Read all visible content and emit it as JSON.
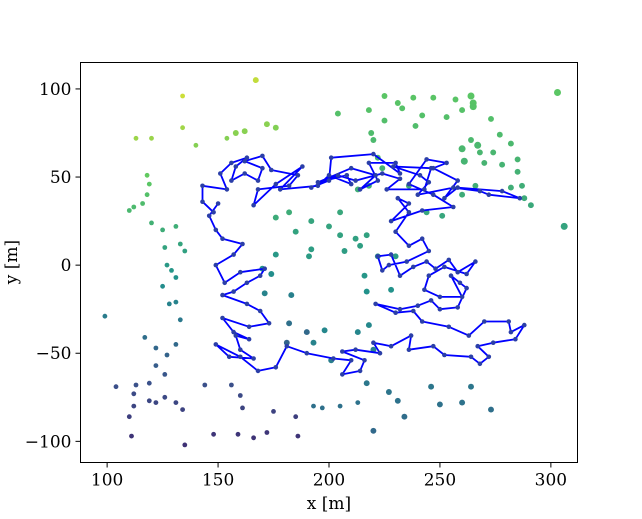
{
  "chart_data": {
    "type": "scatter",
    "title": "",
    "xlabel": "x [m]",
    "ylabel": "y [m]",
    "xlim": [
      88,
      312
    ],
    "ylim": [
      -112,
      115
    ],
    "xticks": [
      100,
      150,
      200,
      250,
      300
    ],
    "yticks": [
      -100,
      -50,
      0,
      50,
      100
    ],
    "xtick_labels": [
      "100",
      "150",
      "200",
      "250",
      "300"
    ],
    "ytick_labels": [
      "−100",
      "−50",
      "0",
      "50",
      "100"
    ],
    "grid": false,
    "legend": "none",
    "colormap": "viridis",
    "colors": {
      "path": "#0000ff",
      "path_nodes": "#2b3fa8",
      "axes": "#000000",
      "background": "#ffffff"
    },
    "scatter_points": [
      [
        113,
        72,
        1,
        4
      ],
      [
        120,
        72,
        1,
        4
      ],
      [
        134,
        96,
        1,
        4
      ],
      [
        134,
        78,
        1,
        4
      ],
      [
        140,
        68,
        1,
        4
      ],
      [
        167,
        105,
        1,
        5
      ],
      [
        172,
        80,
        1,
        5
      ],
      [
        176,
        78,
        1,
        5
      ],
      [
        154,
        72,
        1,
        4
      ],
      [
        158,
        75,
        1,
        5
      ],
      [
        162,
        76,
        1,
        5
      ],
      [
        118,
        51,
        1,
        4
      ],
      [
        119,
        46,
        1,
        4
      ],
      [
        118,
        40,
        1,
        4
      ],
      [
        116,
        35,
        1,
        4
      ],
      [
        112,
        33,
        1,
        4
      ],
      [
        110,
        31,
        1,
        4
      ],
      [
        120,
        24,
        1,
        4
      ],
      [
        125,
        20,
        1,
        4
      ],
      [
        131,
        22,
        1,
        4
      ],
      [
        133,
        12,
        1,
        4
      ],
      [
        135,
        8,
        1,
        4
      ],
      [
        126,
        10,
        1,
        4
      ],
      [
        127,
        0,
        1,
        4
      ],
      [
        129,
        -3,
        1,
        4
      ],
      [
        131,
        -7,
        1,
        4
      ],
      [
        125,
        -12,
        1,
        4
      ],
      [
        128,
        -22,
        1,
        4
      ],
      [
        131,
        -21,
        1,
        4
      ],
      [
        133,
        -31,
        1,
        4
      ],
      [
        99,
        -29,
        1,
        4
      ],
      [
        117,
        -41,
        1,
        4
      ],
      [
        122,
        -47,
        1,
        4
      ],
      [
        127,
        -51,
        1,
        4
      ],
      [
        131,
        -45,
        1,
        4
      ],
      [
        122,
        -57,
        1,
        4
      ],
      [
        126,
        -62,
        1,
        4
      ],
      [
        119,
        -67,
        1,
        4
      ],
      [
        113,
        -68,
        1,
        4
      ],
      [
        104,
        -69,
        1,
        4
      ],
      [
        112,
        -73,
        1,
        4
      ],
      [
        119,
        -77,
        1,
        4
      ],
      [
        122,
        -78,
        1,
        4
      ],
      [
        126,
        -75,
        1,
        4
      ],
      [
        131,
        -78,
        1,
        4
      ],
      [
        134,
        -82,
        1,
        4
      ],
      [
        112,
        -80,
        1,
        4
      ],
      [
        110,
        -86,
        1,
        4
      ],
      [
        111,
        -97,
        1,
        4
      ],
      [
        135,
        -102,
        1,
        4
      ],
      [
        148,
        -96,
        1,
        4
      ],
      [
        159,
        -96,
        1,
        4
      ],
      [
        166,
        -98,
        1,
        4
      ],
      [
        186,
        -97,
        1,
        4
      ],
      [
        172,
        -95,
        1,
        4
      ],
      [
        144,
        -68,
        1,
        4
      ],
      [
        156,
        -68,
        1,
        4
      ],
      [
        160,
        -74,
        1,
        4
      ],
      [
        161,
        -81,
        1,
        4
      ],
      [
        175,
        -83,
        1,
        4
      ],
      [
        185,
        -86,
        1,
        4
      ],
      [
        193,
        -80,
        1,
        4
      ],
      [
        197,
        -81,
        1,
        4
      ],
      [
        205,
        -80,
        1,
        4
      ],
      [
        213,
        -78,
        1,
        4
      ],
      [
        220,
        -94,
        1,
        5
      ],
      [
        231,
        -77,
        1,
        5
      ],
      [
        234,
        -86,
        1,
        5
      ],
      [
        250,
        -79,
        1,
        5
      ],
      [
        264,
        -69,
        1,
        5
      ],
      [
        273,
        -82,
        1,
        5
      ],
      [
        246,
        -69,
        1,
        5
      ],
      [
        260,
        -78,
        1,
        5
      ],
      [
        217,
        -67,
        1,
        5
      ],
      [
        227,
        -72,
        1,
        5
      ],
      [
        204,
        86,
        1,
        5
      ],
      [
        218,
        88,
        1,
        5
      ],
      [
        225,
        96,
        1,
        5
      ],
      [
        231,
        92,
        1,
        5
      ],
      [
        233,
        89,
        1,
        5
      ],
      [
        238,
        95,
        1,
        5
      ],
      [
        247,
        95,
        1,
        5
      ],
      [
        257,
        94,
        1,
        5
      ],
      [
        264,
        96,
        1,
        6
      ],
      [
        265,
        92,
        1,
        6
      ],
      [
        265,
        90,
        1,
        6
      ],
      [
        260,
        88,
        1,
        5
      ],
      [
        273,
        83,
        1,
        5
      ],
      [
        303,
        98,
        1,
        6
      ],
      [
        242,
        85,
        1,
        5
      ],
      [
        225,
        82,
        1,
        5
      ],
      [
        219,
        75,
        1,
        5
      ],
      [
        220,
        71,
        1,
        5
      ],
      [
        239,
        79,
        1,
        5
      ],
      [
        253,
        84,
        1,
        5
      ],
      [
        264,
        71,
        1,
        5
      ],
      [
        277,
        74,
        1,
        5
      ],
      [
        267,
        68,
        1,
        6
      ],
      [
        282,
        69,
        1,
        5
      ],
      [
        285,
        60,
        1,
        5
      ],
      [
        260,
        66,
        1,
        6
      ],
      [
        268,
        64,
        1,
        5
      ],
      [
        274,
        64,
        1,
        5
      ],
      [
        261,
        59,
        1,
        6
      ],
      [
        270,
        58,
        1,
        5
      ],
      [
        278,
        57,
        1,
        5
      ],
      [
        285,
        53,
        1,
        5
      ],
      [
        287,
        45,
        1,
        5
      ],
      [
        288,
        38,
        1,
        5
      ],
      [
        282,
        44,
        1,
        5
      ],
      [
        291,
        34,
        1,
        5
      ],
      [
        306,
        22,
        1,
        6
      ],
      [
        266,
        45,
        1,
        5
      ],
      [
        260,
        40,
        1,
        5
      ],
      [
        251,
        28,
        1,
        5
      ],
      [
        244,
        30,
        1,
        5
      ],
      [
        236,
        45,
        1,
        5
      ],
      [
        224,
        55,
        1,
        5
      ],
      [
        222,
        61,
        1,
        5
      ],
      [
        218,
        45,
        1,
        5
      ],
      [
        213,
        43,
        1,
        5
      ],
      [
        205,
        30,
        1,
        5
      ],
      [
        200,
        22,
        1,
        5
      ],
      [
        205,
        17,
        1,
        5
      ],
      [
        212,
        15,
        1,
        5
      ],
      [
        207,
        8,
        1,
        5
      ],
      [
        214,
        11,
        1,
        5
      ],
      [
        217,
        17,
        1,
        5
      ],
      [
        222,
        5,
        1,
        5
      ],
      [
        216,
        -6,
        1,
        5
      ],
      [
        217,
        -15,
        1,
        5
      ],
      [
        228,
        -14,
        1,
        5
      ],
      [
        230,
        5,
        1,
        5
      ],
      [
        192,
        25,
        1,
        5
      ],
      [
        182,
        30,
        1,
        5
      ],
      [
        176,
        27,
        1,
        5
      ],
      [
        185,
        19,
        1,
        5
      ],
      [
        192,
        9,
        1,
        5
      ],
      [
        191,
        5,
        1,
        5
      ],
      [
        176,
        6,
        1,
        5
      ],
      [
        170,
        -2,
        1,
        5
      ],
      [
        174,
        -5,
        1,
        5
      ],
      [
        171,
        -16,
        1,
        5
      ],
      [
        183,
        -17,
        1,
        5
      ],
      [
        182,
        -33,
        1,
        5
      ],
      [
        181,
        -44,
        1,
        5
      ],
      [
        190,
        -38,
        1,
        5
      ],
      [
        193,
        -44,
        1,
        5
      ],
      [
        198,
        -37,
        1,
        5
      ],
      [
        201,
        -54,
        1,
        5
      ],
      [
        213,
        -38,
        1,
        5
      ],
      [
        218,
        -34,
        1,
        5
      ],
      [
        220,
        -48,
        1,
        5
      ]
    ],
    "path_points": [
      [
        148,
        30
      ],
      [
        143,
        36
      ],
      [
        143,
        45
      ],
      [
        154,
        43
      ],
      [
        151,
        52
      ],
      [
        156,
        58
      ],
      [
        163,
        61
      ],
      [
        158,
        56
      ],
      [
        156,
        48
      ],
      [
        162,
        52
      ],
      [
        168,
        48
      ],
      [
        170,
        55
      ],
      [
        162,
        59
      ],
      [
        170,
        62
      ],
      [
        174,
        54
      ],
      [
        186,
        51
      ],
      [
        182,
        45
      ],
      [
        168,
        43
      ],
      [
        166,
        34
      ],
      [
        176,
        46
      ],
      [
        188,
        56
      ],
      [
        178,
        43
      ],
      [
        195,
        45
      ],
      [
        200,
        51
      ],
      [
        210,
        46
      ],
      [
        208,
        51
      ],
      [
        195,
        47
      ],
      [
        210,
        55
      ],
      [
        221,
        51
      ],
      [
        214,
        43
      ],
      [
        222,
        48
      ],
      [
        218,
        58
      ],
      [
        230,
        58
      ],
      [
        232,
        52
      ],
      [
        220,
        63
      ],
      [
        201,
        61
      ],
      [
        200,
        48
      ],
      [
        192,
        44
      ],
      [
        204,
        51
      ],
      [
        212,
        48
      ],
      [
        224,
        52
      ],
      [
        232,
        49
      ],
      [
        226,
        43
      ],
      [
        243,
        43
      ],
      [
        246,
        55
      ],
      [
        229,
        56
      ],
      [
        241,
        51
      ],
      [
        245,
        47
      ],
      [
        240,
        40
      ],
      [
        256,
        44
      ],
      [
        268,
        42
      ],
      [
        272,
        40
      ],
      [
        286,
        38
      ],
      [
        278,
        42
      ],
      [
        258,
        44
      ],
      [
        252,
        38
      ],
      [
        258,
        48
      ],
      [
        247,
        55
      ],
      [
        253,
        58
      ],
      [
        244,
        60
      ],
      [
        236,
        46
      ],
      [
        247,
        40
      ],
      [
        256,
        33
      ],
      [
        242,
        31
      ],
      [
        228,
        25
      ],
      [
        236,
        35
      ],
      [
        231,
        38
      ],
      [
        236,
        30
      ],
      [
        230,
        19
      ],
      [
        236,
        11
      ],
      [
        242,
        15
      ],
      [
        245,
        8
      ],
      [
        235,
        2
      ],
      [
        227,
        0
      ],
      [
        224,
        -3
      ],
      [
        222,
        5
      ],
      [
        228,
        6
      ],
      [
        232,
        -6
      ],
      [
        238,
        -1
      ],
      [
        244,
        2
      ],
      [
        248,
        -2
      ],
      [
        254,
        3
      ],
      [
        258,
        -4
      ],
      [
        266,
        2
      ],
      [
        262,
        -5
      ],
      [
        252,
        -1
      ],
      [
        245,
        -6
      ],
      [
        243,
        -14
      ],
      [
        250,
        -18
      ],
      [
        260,
        -18
      ],
      [
        255,
        -6
      ],
      [
        259,
        -10
      ],
      [
        262,
        -13
      ],
      [
        258,
        -24
      ],
      [
        250,
        -25
      ],
      [
        246,
        -20
      ],
      [
        240,
        -23
      ],
      [
        232,
        -25
      ],
      [
        221,
        -22
      ],
      [
        230,
        -27
      ],
      [
        238,
        -26
      ],
      [
        242,
        -32
      ],
      [
        254,
        -35
      ],
      [
        263,
        -40
      ],
      [
        270,
        -32
      ],
      [
        281,
        -32
      ],
      [
        282,
        -38
      ],
      [
        288,
        -34
      ],
      [
        284,
        -42
      ],
      [
        274,
        -44
      ],
      [
        267,
        -46
      ],
      [
        272,
        -52
      ],
      [
        268,
        -56
      ],
      [
        264,
        -52
      ],
      [
        252,
        -51
      ],
      [
        247,
        -46
      ],
      [
        236,
        -48
      ],
      [
        237,
        -40
      ],
      [
        228,
        -46
      ],
      [
        220,
        -44
      ],
      [
        223,
        -50
      ],
      [
        212,
        -48
      ],
      [
        206,
        -49
      ],
      [
        216,
        -54
      ],
      [
        214,
        -60
      ],
      [
        206,
        -62
      ],
      [
        210,
        -54
      ],
      [
        202,
        -53
      ],
      [
        190,
        -50
      ],
      [
        181,
        -46
      ],
      [
        176,
        -58
      ],
      [
        168,
        -60
      ],
      [
        160,
        -52
      ],
      [
        149,
        -45
      ],
      [
        155,
        -52
      ],
      [
        166,
        -53
      ],
      [
        160,
        -48
      ],
      [
        158,
        -40
      ],
      [
        164,
        -42
      ],
      [
        157,
        -38
      ],
      [
        152,
        -30
      ],
      [
        164,
        -35
      ],
      [
        173,
        -33
      ],
      [
        169,
        -26
      ],
      [
        163,
        -22
      ],
      [
        152,
        -17
      ],
      [
        157,
        -15
      ],
      [
        163,
        -10
      ],
      [
        169,
        -6
      ],
      [
        171,
        -2
      ],
      [
        160,
        -4
      ],
      [
        153,
        -10
      ],
      [
        149,
        0
      ],
      [
        157,
        6
      ],
      [
        161,
        12
      ],
      [
        152,
        15
      ],
      [
        149,
        20
      ],
      [
        146,
        28
      ],
      [
        150,
        35
      ]
    ]
  }
}
